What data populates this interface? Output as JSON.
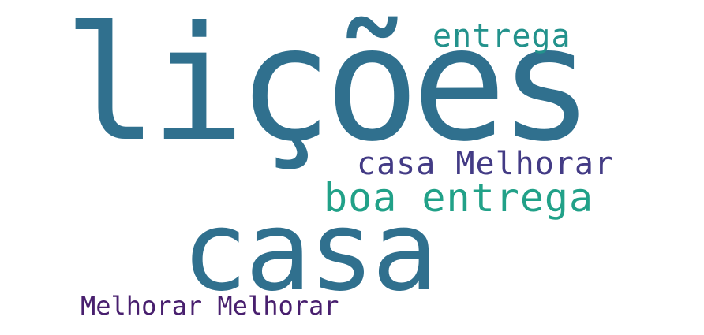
{
  "words": [
    {
      "text": "lições",
      "color": "#30708e"
    },
    {
      "text": "entrega",
      "color": "#23928c"
    },
    {
      "text": "casa Melhorar",
      "color": "#433b85"
    },
    {
      "text": "boa entrega",
      "color": "#21a188"
    },
    {
      "text": "casa",
      "color": "#30708e"
    },
    {
      "text": "Melhorar Melhorar",
      "color": "#481f6e"
    }
  ]
}
